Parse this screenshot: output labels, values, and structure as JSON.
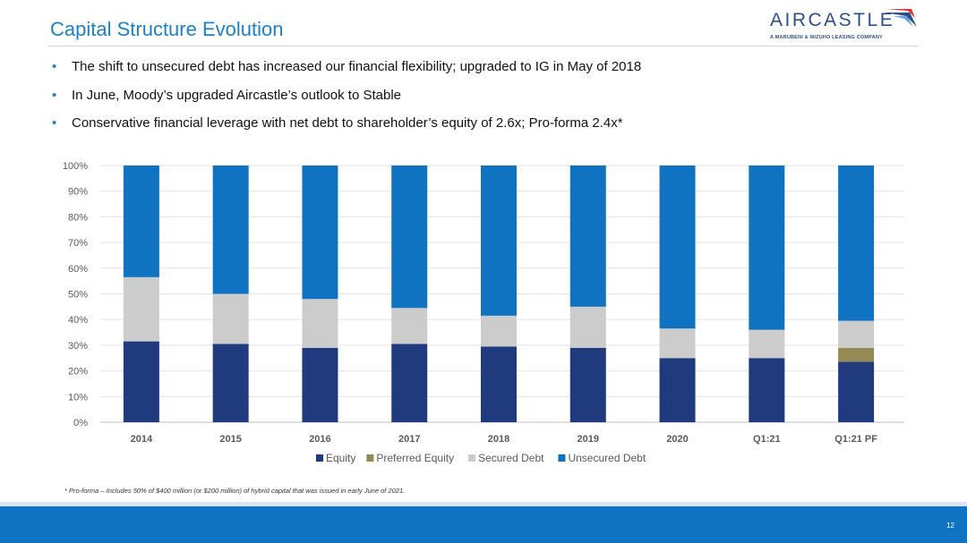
{
  "slide": {
    "title": "Capital Structure Evolution",
    "logo_word": "AIRCASTLE",
    "logo_sub": "A MARUBENI & MIZUHO LEASING COMPANY",
    "bullets": [
      "The shift to unsecured debt has increased our financial flexibility; upgraded to IG in May of 2018",
      "In June, Moody’s upgraded Aircastle’s outlook to Stable",
      "Conservative financial leverage with net debt to shareholder’s equity of 2.6x; Pro-forma 2.4x*"
    ],
    "footnote": "* Pro-forma – Includes 50% of $400 million (or $200 million) of hybrid capital that was issued in early June of 2021.",
    "page_number": "12"
  },
  "chart_data": {
    "type": "bar",
    "stacked": true,
    "categories": [
      "2014",
      "2015",
      "2016",
      "2017",
      "2018",
      "2019",
      "2020",
      "Q1:21",
      "Q1:21 PF"
    ],
    "series": [
      {
        "name": "Equity",
        "color": "#1f3a7d",
        "values": [
          31.5,
          30.5,
          29,
          30.5,
          29.5,
          29,
          25,
          25,
          23.5
        ]
      },
      {
        "name": "Preferred Equity",
        "color": "#948a54",
        "values": [
          0,
          0,
          0,
          0,
          0,
          0,
          0,
          0,
          5.5
        ]
      },
      {
        "name": "Secured Debt",
        "color": "#cccccc",
        "values": [
          25,
          19.5,
          19,
          14,
          12,
          16,
          11.5,
          11,
          10.5
        ]
      },
      {
        "name": "Unsecured Debt",
        "color": "#0f73c2",
        "values": [
          43.5,
          50,
          52,
          55.5,
          58.5,
          55,
          63.5,
          64,
          60.5
        ]
      }
    ],
    "ylim": [
      0,
      100
    ],
    "yticks": [
      "0%",
      "10%",
      "20%",
      "30%",
      "40%",
      "50%",
      "60%",
      "70%",
      "80%",
      "90%",
      "100%"
    ],
    "grid": true,
    "legend": "bottom"
  }
}
